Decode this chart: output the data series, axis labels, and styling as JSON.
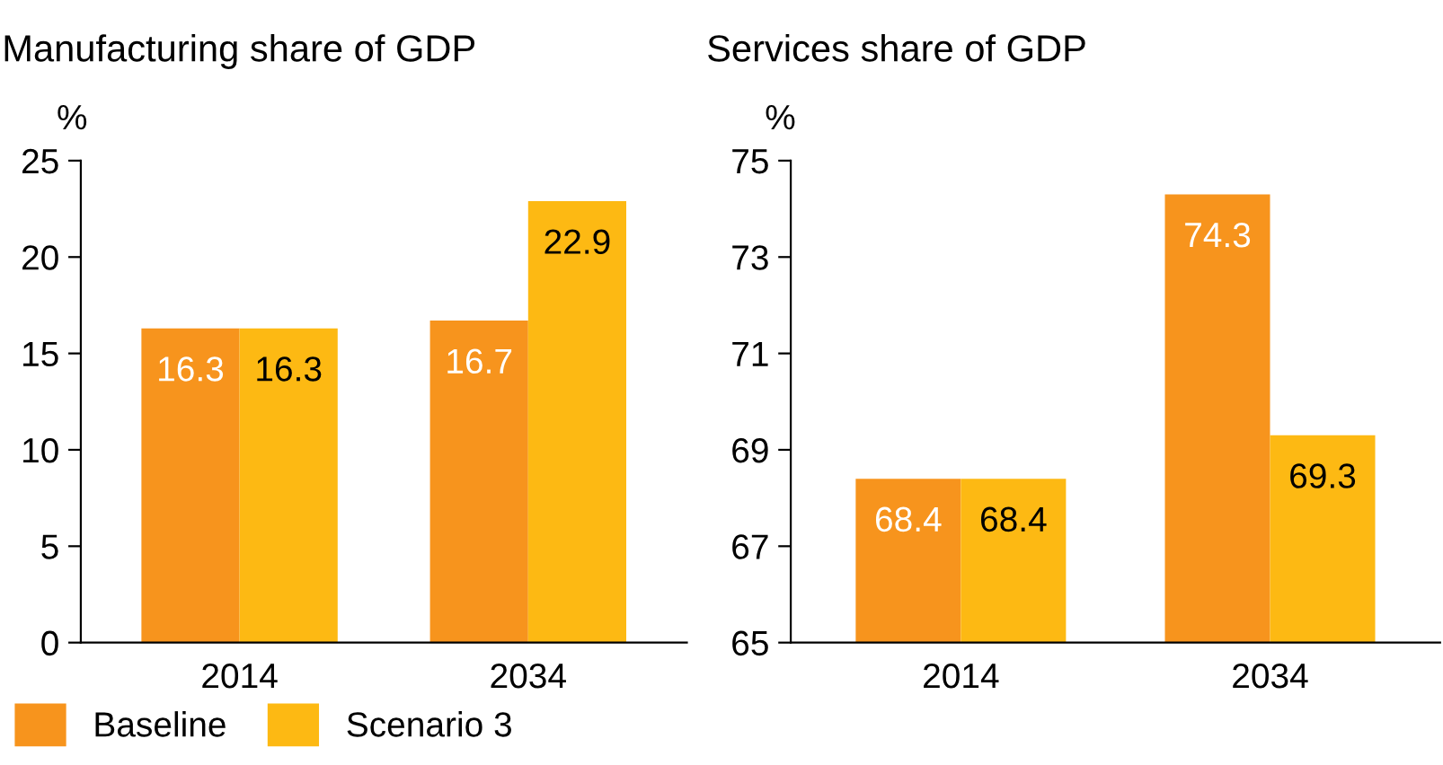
{
  "chart_data": [
    {
      "type": "bar",
      "title": "Manufacturing share of GDP",
      "ylabel": "%",
      "categories": [
        "2014",
        "2034"
      ],
      "series": [
        {
          "name": "Baseline",
          "color": "#f7941d",
          "values": [
            16.3,
            16.7
          ]
        },
        {
          "name": "Scenario 3",
          "color": "#fdb913",
          "values": [
            16.3,
            22.9
          ]
        }
      ],
      "ylim": [
        0,
        25
      ],
      "yticks": [
        0,
        5,
        10,
        15,
        20,
        25
      ],
      "data_labels": true,
      "legend": "bottom",
      "grid": false
    },
    {
      "type": "bar",
      "title": "Services share of GDP",
      "ylabel": "%",
      "categories": [
        "2014",
        "2034"
      ],
      "series": [
        {
          "color": "#f7941d",
          "values": [
            68.4,
            74.3
          ]
        },
        {
          "color": "#fdb913",
          "values": [
            68.4,
            69.3
          ]
        }
      ],
      "ylim": [
        65,
        75
      ],
      "yticks": [
        65,
        67,
        69,
        71,
        73,
        75
      ],
      "data_labels": true,
      "legend": false,
      "grid": false
    }
  ]
}
